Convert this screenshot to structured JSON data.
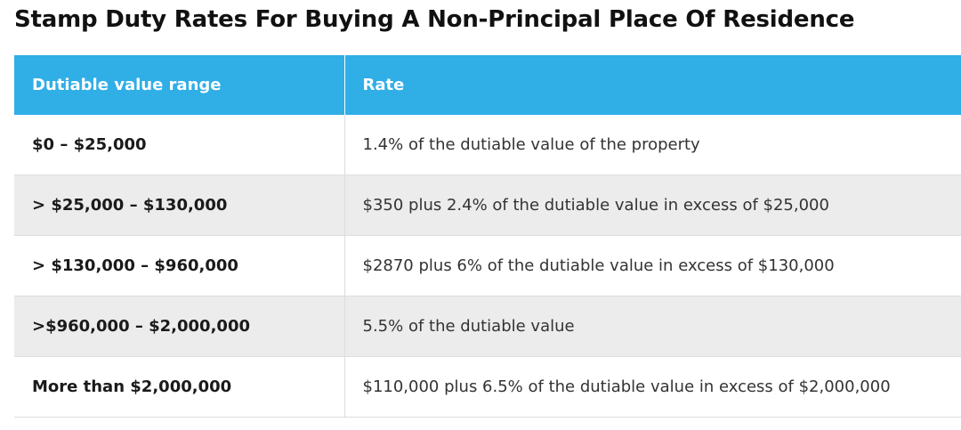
{
  "page": {
    "title": "Stamp Duty Rates For Buying A Non-Principal Place Of Residence"
  },
  "table": {
    "headers": {
      "range": "Dutiable value range",
      "rate": "Rate"
    },
    "rows": [
      {
        "range": "$0 – $25,000",
        "rate": "1.4% of the dutiable value of the property"
      },
      {
        "range": "> $25,000 – $130,000",
        "rate": "$350 plus 2.4% of the dutiable value in excess of $25,000"
      },
      {
        "range": "> $130,000 – $960,000",
        "rate": "$2870 plus 6% of the dutiable value in excess of $130,000"
      },
      {
        "range": ">$960,000 – $2,000,000",
        "rate": "5.5% of the dutiable value"
      },
      {
        "range": "More than $2,000,000",
        "rate": "$110,000 plus 6.5% of the dutiable value in excess of $2,000,000"
      }
    ]
  },
  "colors": {
    "header_bg": "#30aee6",
    "stripe_bg": "#ececec"
  }
}
